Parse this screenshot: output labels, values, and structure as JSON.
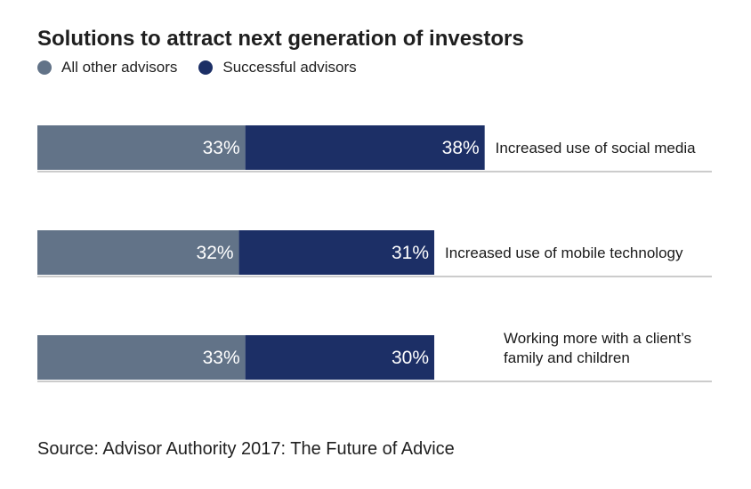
{
  "title": "Solutions to attract next generation of investors",
  "colors": {
    "others": "#627388",
    "successful": "#1c2f66",
    "baseline": "#9a9a9a"
  },
  "chart_data": {
    "type": "bar",
    "orientation": "horizontal",
    "stacked": true,
    "title": "Solutions to attract next generation of investors",
    "legend": [
      "All other advisors",
      "Successful advisors"
    ],
    "legend_position": "top-left",
    "categories": [
      [
        "Increased use of social media"
      ],
      [
        "Increased use of mobile technology"
      ],
      [
        "Working more with a client’s",
        "family and children"
      ]
    ],
    "series": [
      {
        "name": "All other advisors",
        "values": [
          33,
          32,
          33
        ],
        "labels": [
          "33%",
          "32%",
          "33%"
        ]
      },
      {
        "name": "Successful advisors",
        "values": [
          38,
          31,
          30
        ],
        "labels": [
          "38%",
          "31%",
          "30%"
        ]
      }
    ],
    "xlim": [
      0,
      71
    ],
    "unit": "%"
  },
  "source": "Source: Advisor Authority 2017: The Future of Advice"
}
